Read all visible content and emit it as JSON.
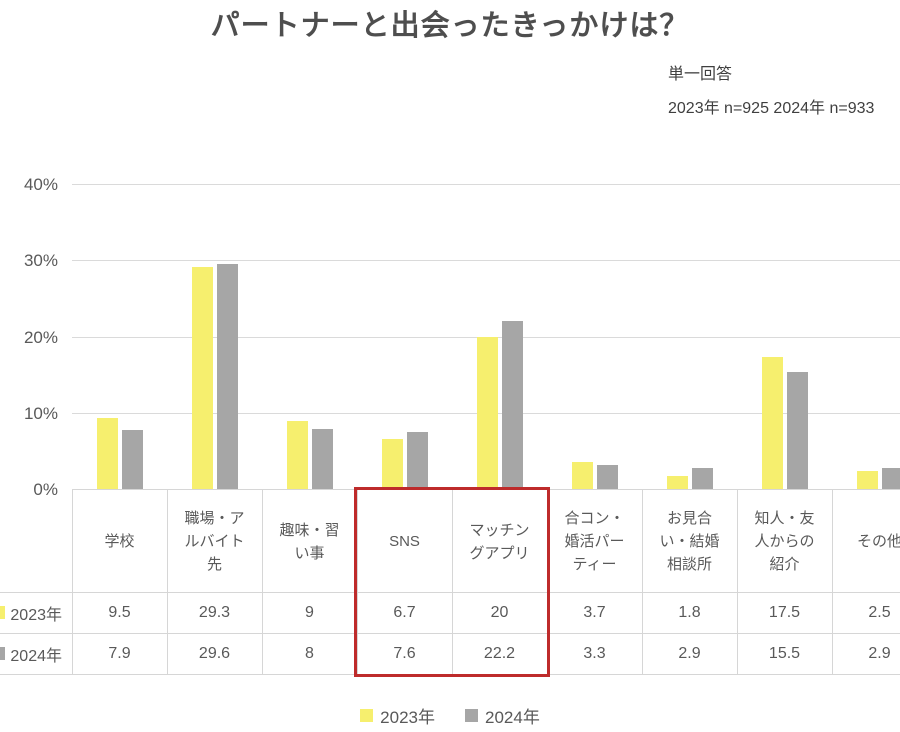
{
  "title": "パートナーと出会ったきっかけは？",
  "note": {
    "line1": "単一回答",
    "line2": "2023年 n=925 2024年 n=933"
  },
  "chart_data": {
    "type": "bar",
    "title": "パートナーと出会ったきっかけは？",
    "categories": [
      "学校",
      "職場・アルバイト先",
      "趣味・習い事",
      "SNS",
      "マッチングアプリ",
      "合コン・婚活パーティー",
      "お見合い・結婚相談所",
      "知人・友人からの紹介",
      "その他"
    ],
    "series": [
      {
        "name": "2023年",
        "color": "#f6ef6e",
        "values": [
          9.5,
          29.3,
          9,
          6.7,
          20,
          3.7,
          1.8,
          17.5,
          2.5
        ]
      },
      {
        "name": "2024年",
        "color": "#a6a6a6",
        "values": [
          7.9,
          29.6,
          8,
          7.6,
          22.2,
          3.3,
          2.9,
          15.5,
          2.9
        ]
      }
    ],
    "ylim": [
      0,
      40
    ],
    "yticks": [
      {
        "value": 0,
        "label": "0%"
      },
      {
        "value": 10,
        "label": "10%"
      },
      {
        "value": 20,
        "label": "20%"
      },
      {
        "value": 30,
        "label": "30%"
      },
      {
        "value": 40,
        "label": "40%"
      }
    ],
    "grid": true,
    "legend_position": "bottom",
    "data_table_shown": true,
    "highlight_box": {
      "from_category": "SNS",
      "to_category": "マッチングアプリ",
      "color": "#be2b2b"
    }
  }
}
